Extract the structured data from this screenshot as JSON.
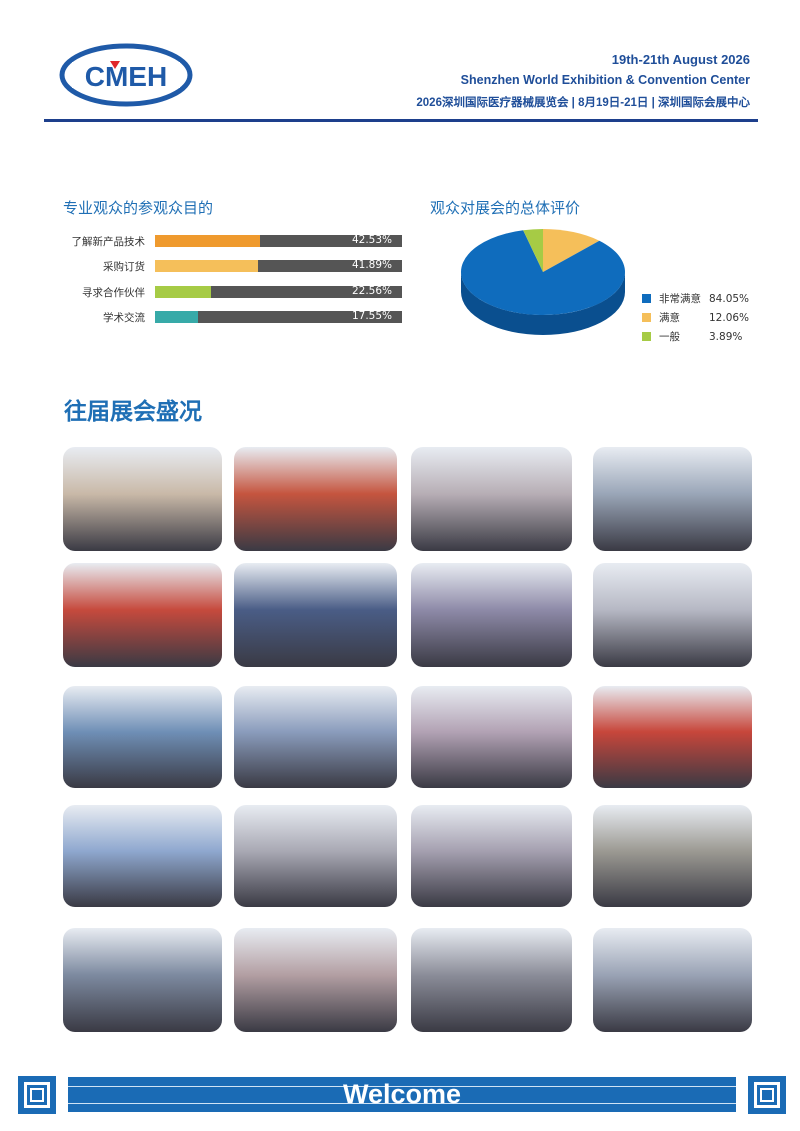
{
  "header": {
    "logo_text": "CMEH",
    "date_en": "19th-21th August 2026",
    "venue_en": "Shenzhen World Exhibition & Convention Center",
    "info_cn": "2026深圳国际医疗器械展览会 | 8月19日-21日 | 深圳国际会展中心"
  },
  "chart_data": [
    {
      "type": "bar",
      "title": "专业观众的参观众目的",
      "categories": [
        "了解新产品技术",
        "采购订货",
        "寻求合作伙伴",
        "学术交流"
      ],
      "values": [
        42.53,
        41.89,
        22.56,
        17.55
      ],
      "labels": [
        "42.53%",
        "41.89%",
        "22.56%",
        "17.55%"
      ],
      "colors": [
        "#ef9a2e",
        "#f5bf5a",
        "#a6cb45",
        "#37aaa8"
      ],
      "track_color": "#555555",
      "ylim": [
        0,
        100
      ]
    },
    {
      "type": "pie",
      "title": "观众对展会的总体评价",
      "categories": [
        "非常满意",
        "满意",
        "一般"
      ],
      "values": [
        84.05,
        12.06,
        3.89
      ],
      "labels": [
        "84.05%",
        "12.06%",
        "3.89%"
      ],
      "colors": [
        "#0f6cbd",
        "#f5bf5a",
        "#a6cb45"
      ],
      "legend": "right"
    }
  ],
  "gallery": {
    "title": "往届展会盛况",
    "photos": [
      "visitors-talking",
      "exhibition-aisle",
      "crowd-hall",
      "crowd-hall",
      "booths-red",
      "cotaus-booth",
      "crowd-hall",
      "booths-hall",
      "booths-blue",
      "booth-white",
      "visitors-walking",
      "booths-red",
      "bgi-booth",
      "crowd-hall",
      "crowd-hall",
      "visitors-group",
      "visitors-group",
      "crowd-hall",
      "crowd-hall",
      "booths-hall"
    ]
  },
  "footer": {
    "welcome": "Welcome"
  }
}
